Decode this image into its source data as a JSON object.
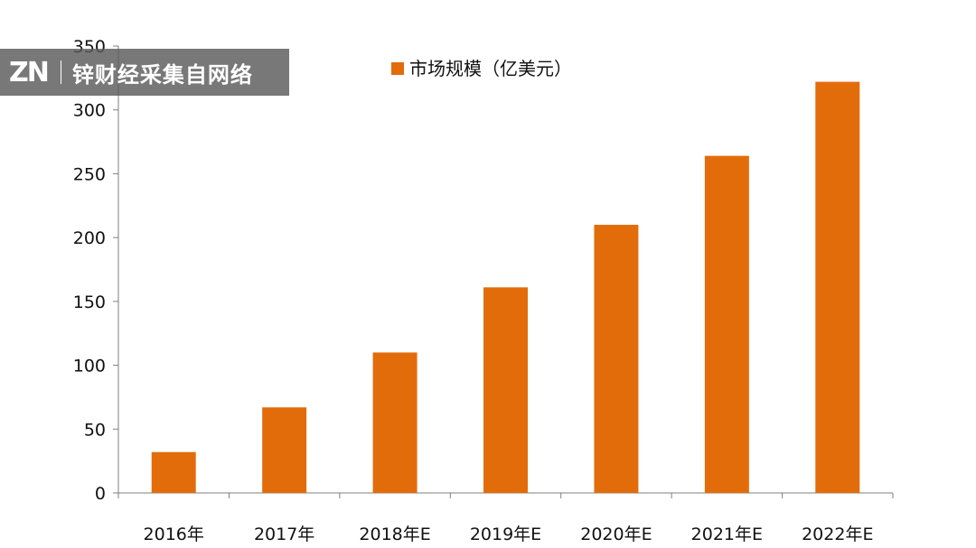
{
  "watermark": {
    "logo": "ZN",
    "text": "锌财经采集自网络"
  },
  "chart_data": {
    "type": "bar",
    "title": "",
    "xlabel": "",
    "ylabel": "",
    "categories": [
      "2016年",
      "2017年",
      "2018年E",
      "2019年E",
      "2020年E",
      "2021年E",
      "2022年E"
    ],
    "series": [
      {
        "name": "市场规模（亿美元）",
        "values": [
          32,
          67,
          110,
          161,
          210,
          264,
          322
        ],
        "color": "#E36C0A"
      }
    ],
    "ylim": [
      0,
      350
    ],
    "yticks": [
      0,
      50,
      100,
      150,
      200,
      250,
      300,
      350
    ],
    "grid": false,
    "legend_position": "top"
  }
}
